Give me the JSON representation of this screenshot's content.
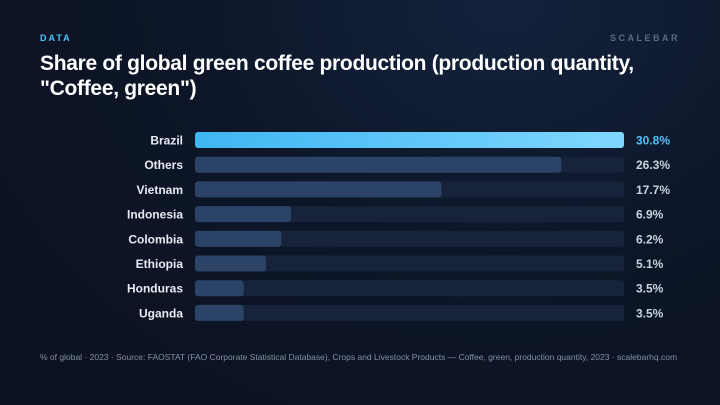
{
  "header": {
    "eyebrow": "DATA",
    "brand": "SCALEBAR",
    "title": "Share of global green coffee production (production quantity, \"Coffee, green\")"
  },
  "footer": {
    "source": "% of global · 2023 · Source: FAOSTAT (FAO Corporate Statistical Database), Crops and Livestock Products — Coffee, green, production quantity, 2023 · scalebarhq.com"
  },
  "colors": {
    "highlight_start": "#3fb6f2",
    "highlight_end": "#7fd7ff",
    "bar": "#2b4366",
    "track": "#16233a",
    "label": "#e6ebf2",
    "value": "#c9d2df",
    "value_highlight": "#4fc3f7"
  },
  "chart_data": {
    "type": "bar",
    "orientation": "horizontal",
    "unit": "%",
    "xlim": [
      0,
      30.8
    ],
    "highlight": "Brazil",
    "categories": [
      "Brazil",
      "Others",
      "Vietnam",
      "Indonesia",
      "Colombia",
      "Ethiopia",
      "Honduras",
      "Uganda"
    ],
    "values": [
      30.8,
      26.3,
      17.7,
      6.9,
      6.2,
      5.1,
      3.5,
      3.5
    ],
    "value_labels": [
      "30.8%",
      "26.3%",
      "17.7%",
      "6.9%",
      "6.2%",
      "5.1%",
      "3.5%",
      "3.5%"
    ]
  }
}
